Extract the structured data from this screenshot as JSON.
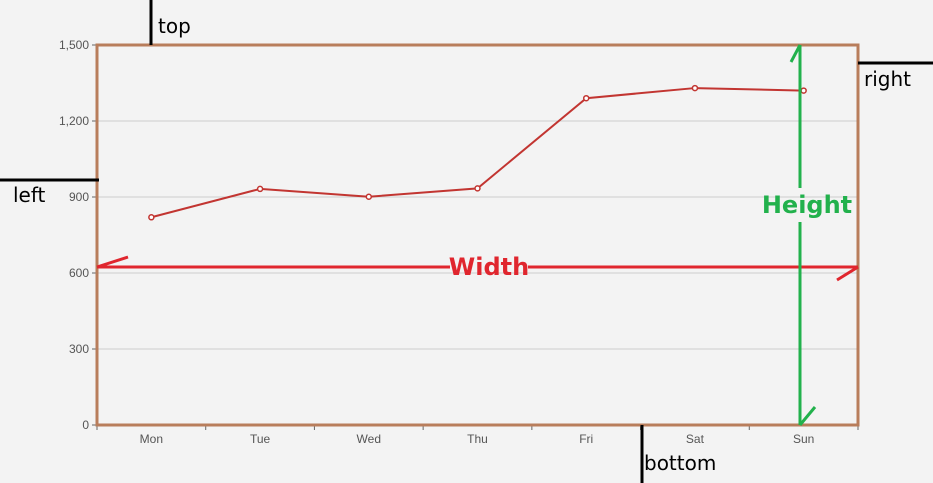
{
  "chart_data": {
    "type": "line",
    "categories": [
      "Mon",
      "Tue",
      "Wed",
      "Thu",
      "Fri",
      "Sat",
      "Sun"
    ],
    "series": [
      {
        "values": [
          820,
          932,
          901,
          934,
          1290,
          1330,
          1320
        ]
      }
    ],
    "yticks": [
      "0",
      "300",
      "600",
      "900",
      "1,200",
      "1,500"
    ],
    "ylim": [
      0,
      1500
    ],
    "grid": true,
    "title": "",
    "xlabel": "",
    "ylabel": ""
  },
  "annotations": {
    "top": "top",
    "bottom": "bottom",
    "left": "left",
    "right": "right",
    "width": "Width",
    "height": "Height"
  },
  "colors": {
    "line": "#c23531",
    "frame": "#b87d5b",
    "width_arrow": "#e0262e",
    "height_arrow": "#22b14c"
  }
}
